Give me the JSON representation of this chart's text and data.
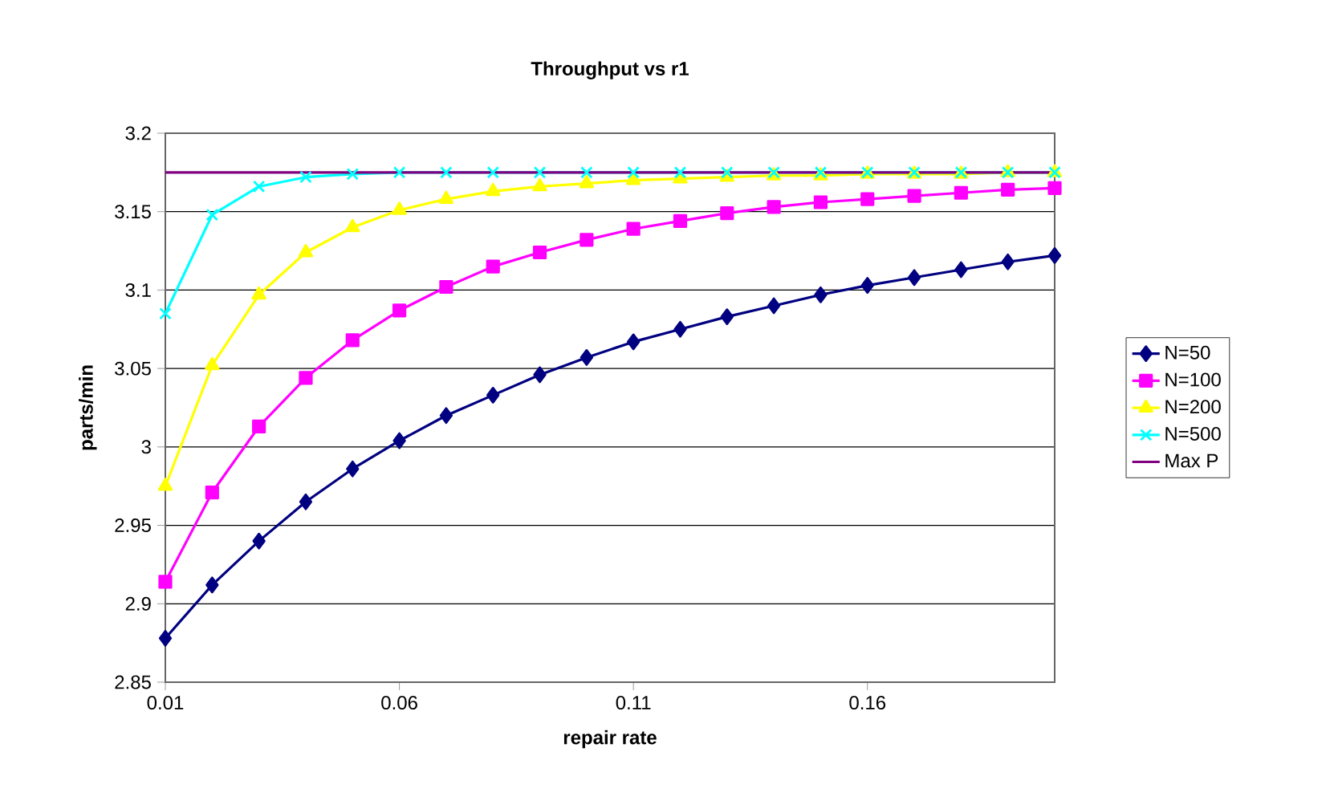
{
  "chart_data": {
    "type": "line",
    "title": "Throughput vs r1",
    "xlabel": "repair rate",
    "ylabel": "parts/min",
    "x": [
      0.01,
      0.02,
      0.03,
      0.04,
      0.05,
      0.06,
      0.07,
      0.08,
      0.09,
      0.1,
      0.11,
      0.12,
      0.13,
      0.14,
      0.15,
      0.16,
      0.17,
      0.18,
      0.19,
      0.2
    ],
    "xlim": [
      0.01,
      0.2
    ],
    "xticks": [
      0.01,
      0.06,
      0.11,
      0.16
    ],
    "ylim": [
      2.85,
      3.2
    ],
    "yticks": [
      2.85,
      2.9,
      2.95,
      3,
      3.05,
      3.1,
      3.15,
      3.2
    ],
    "grid": "y",
    "legend": "right",
    "series": [
      {
        "name": "N=50",
        "color": "#000080",
        "marker": "diamond",
        "values": [
          2.878,
          2.912,
          2.94,
          2.965,
          2.986,
          3.004,
          3.02,
          3.033,
          3.046,
          3.057,
          3.067,
          3.075,
          3.083,
          3.09,
          3.097,
          3.103,
          3.108,
          3.113,
          3.118,
          3.122
        ]
      },
      {
        "name": "N=100",
        "color": "#ff00ff",
        "marker": "square",
        "values": [
          2.914,
          2.971,
          3.013,
          3.044,
          3.068,
          3.087,
          3.102,
          3.115,
          3.124,
          3.132,
          3.139,
          3.144,
          3.149,
          3.153,
          3.156,
          3.158,
          3.16,
          3.162,
          3.164,
          3.165
        ]
      },
      {
        "name": "N=200",
        "color": "#ffff00",
        "marker": "triangle",
        "values": [
          2.975,
          3.052,
          3.097,
          3.124,
          3.14,
          3.151,
          3.158,
          3.163,
          3.166,
          3.168,
          3.17,
          3.171,
          3.172,
          3.173,
          3.173,
          3.174,
          3.174,
          3.174,
          3.175,
          3.175
        ]
      },
      {
        "name": "N=500",
        "color": "#00ffff",
        "marker": "cross",
        "values": [
          3.085,
          3.148,
          3.166,
          3.172,
          3.174,
          3.175,
          3.175,
          3.175,
          3.175,
          3.175,
          3.175,
          3.175,
          3.175,
          3.175,
          3.175,
          3.175,
          3.175,
          3.175,
          3.175,
          3.175
        ]
      },
      {
        "name": "Max P",
        "color": "#800080",
        "marker": "none",
        "values": [
          3.175,
          3.175,
          3.175,
          3.175,
          3.175,
          3.175,
          3.175,
          3.175,
          3.175,
          3.175,
          3.175,
          3.175,
          3.175,
          3.175,
          3.175,
          3.175,
          3.175,
          3.175,
          3.175,
          3.175
        ]
      }
    ]
  }
}
